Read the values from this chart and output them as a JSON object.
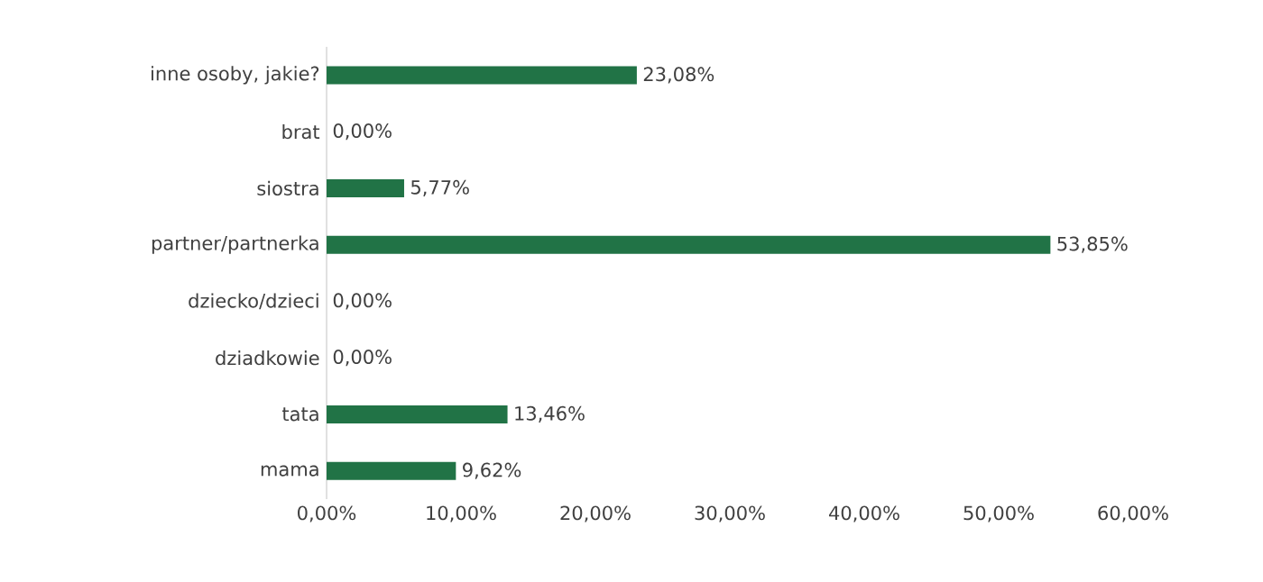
{
  "chart_data": {
    "type": "bar",
    "orientation": "horizontal",
    "categories": [
      "inne osoby, jakie?",
      "brat",
      "siostra",
      "partner/partnerka",
      "dziecko/dzieci",
      "dziadkowie",
      "tata",
      "mama"
    ],
    "values": [
      23.08,
      0,
      5.77,
      53.85,
      0,
      0,
      13.46,
      9.62
    ],
    "value_labels": [
      "23,08%",
      "0,00%",
      "5,77%",
      "53,85%",
      "0,00%",
      "0,00%",
      "13,46%",
      "9,62%"
    ],
    "color": "#217346",
    "xlim": [
      0,
      60
    ],
    "xticks": [
      {
        "value": 0,
        "label": "0,00%"
      },
      {
        "value": 10,
        "label": "10,00%"
      },
      {
        "value": 20,
        "label": "20,00%"
      },
      {
        "value": 30,
        "label": "30,00%"
      },
      {
        "value": 40,
        "label": "40,00%"
      },
      {
        "value": 50,
        "label": "50,00%"
      },
      {
        "value": 60,
        "label": "60,00%"
      }
    ],
    "grid": false
  }
}
